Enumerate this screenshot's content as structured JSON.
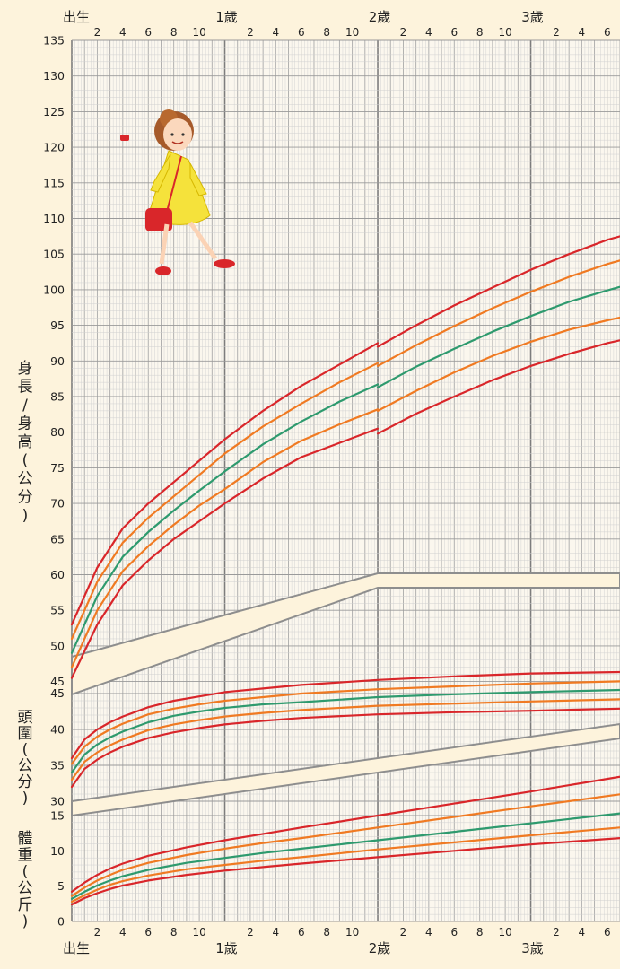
{
  "chart_data": {
    "type": "line",
    "title": "",
    "x_axis": {
      "unit": "months",
      "range": [
        0,
        43
      ],
      "major_labels": [
        {
          "month": 0,
          "text": "出生"
        },
        {
          "month": 12,
          "text": "1歲"
        },
        {
          "month": 24,
          "text": "2歲"
        },
        {
          "month": 36,
          "text": "3歲"
        }
      ],
      "minor_labels": [
        {
          "month": 2,
          "text": "2"
        },
        {
          "month": 4,
          "text": "4"
        },
        {
          "month": 6,
          "text": "6"
        },
        {
          "month": 8,
          "text": "8"
        },
        {
          "month": 10,
          "text": "10"
        },
        {
          "month": 14,
          "text": "2"
        },
        {
          "month": 16,
          "text": "4"
        },
        {
          "month": 18,
          "text": "6"
        },
        {
          "month": 20,
          "text": "8"
        },
        {
          "month": 22,
          "text": "10"
        },
        {
          "month": 26,
          "text": "2"
        },
        {
          "month": 28,
          "text": "4"
        },
        {
          "month": 30,
          "text": "6"
        },
        {
          "month": 32,
          "text": "8"
        },
        {
          "month": 34,
          "text": "10"
        },
        {
          "month": 38,
          "text": "2"
        },
        {
          "month": 40,
          "text": "4"
        },
        {
          "month": 42,
          "text": "6"
        }
      ]
    },
    "y_ticks": {
      "length": [
        "135",
        "130",
        "125",
        "120",
        "115",
        "110",
        "105",
        "100",
        "95",
        "90",
        "85",
        "80",
        "75",
        "70",
        "65",
        "60",
        "55",
        "50",
        "45"
      ],
      "head": [
        "45",
        "40",
        "35",
        "30"
      ],
      "weight": [
        "15",
        "10",
        "5",
        "0"
      ]
    },
    "axis_titles": {
      "length": [
        "身",
        "長",
        "/",
        "身",
        "高",
        "(",
        "公",
        "分",
        ")"
      ],
      "head": [
        "頭",
        "圍",
        "(",
        "公",
        "分",
        ")"
      ],
      "weight": [
        "體",
        "重",
        "(",
        "公",
        "斤",
        ")"
      ]
    },
    "percentile_colors": [
      "#d9262a",
      "#f07a22",
      "#2e9a6e",
      "#f07a22",
      "#d9262a"
    ],
    "series": [
      {
        "panel": "length",
        "x": [
          0,
          2,
          4,
          6,
          8,
          10,
          12,
          15,
          18,
          21,
          24
        ],
        "lines": [
          [
            53.0,
            61.0,
            66.5,
            70.0,
            73.0,
            76.0,
            79.0,
            83.0,
            86.5,
            89.5,
            92.5
          ],
          [
            51.0,
            59.0,
            64.5,
            68.0,
            71.0,
            74.0,
            77.0,
            80.8,
            84.0,
            87.0,
            89.7
          ],
          [
            49.0,
            57.0,
            62.5,
            66.0,
            69.0,
            71.8,
            74.5,
            78.3,
            81.5,
            84.3,
            86.7
          ],
          [
            47.0,
            55.0,
            60.5,
            64.0,
            67.0,
            69.7,
            72.0,
            75.8,
            78.8,
            81.1,
            83.2
          ],
          [
            45.5,
            53.0,
            58.5,
            62.0,
            65.0,
            67.5,
            70.0,
            73.5,
            76.5,
            78.5,
            80.5
          ]
        ]
      },
      {
        "panel": "height",
        "x": [
          24,
          27,
          30,
          33,
          36,
          39,
          42,
          43
        ],
        "lines": [
          [
            92.0,
            95.0,
            97.8,
            100.3,
            102.8,
            105.0,
            107.0,
            107.5
          ],
          [
            89.3,
            92.2,
            94.9,
            97.4,
            99.7,
            101.8,
            103.6,
            104.1
          ],
          [
            86.3,
            89.2,
            91.7,
            94.1,
            96.3,
            98.3,
            99.9,
            100.4
          ],
          [
            83.0,
            85.8,
            88.4,
            90.7,
            92.7,
            94.4,
            95.7,
            96.1
          ],
          [
            79.8,
            82.6,
            85.0,
            87.3,
            89.3,
            91.0,
            92.5,
            92.9
          ]
        ]
      },
      {
        "panel": "head",
        "x": [
          0,
          1,
          2,
          3,
          4,
          6,
          8,
          10,
          12,
          15,
          18,
          24,
          30,
          36,
          43
        ],
        "lines": [
          [
            36.0,
            38.6,
            40.0,
            41.0,
            41.8,
            43.1,
            44.0,
            44.6,
            45.2,
            45.7,
            46.2,
            46.9,
            47.4,
            47.8,
            48.0
          ],
          [
            35.2,
            37.6,
            39.0,
            40.0,
            40.8,
            42.1,
            42.9,
            43.5,
            44.0,
            44.5,
            45.0,
            45.6,
            46.0,
            46.4,
            46.7
          ],
          [
            34.0,
            36.5,
            37.9,
            38.9,
            39.7,
            41.0,
            41.9,
            42.5,
            43.0,
            43.5,
            43.8,
            44.5,
            44.9,
            45.2,
            45.5
          ],
          [
            33.0,
            35.5,
            36.8,
            37.8,
            38.6,
            39.9,
            40.7,
            41.3,
            41.8,
            42.3,
            42.7,
            43.3,
            43.6,
            43.9,
            44.2
          ],
          [
            32.0,
            34.5,
            35.8,
            36.8,
            37.6,
            38.8,
            39.6,
            40.2,
            40.7,
            41.2,
            41.6,
            42.1,
            42.4,
            42.6,
            42.9
          ]
        ]
      },
      {
        "panel": "weight",
        "x": [
          0,
          1,
          2,
          3,
          4,
          6,
          9,
          12,
          15,
          18,
          24,
          30,
          36,
          43
        ],
        "lines": [
          [
            4.2,
            5.5,
            6.6,
            7.5,
            8.2,
            9.3,
            10.5,
            11.5,
            12.4,
            13.3,
            15.0,
            16.7,
            18.4,
            20.5
          ],
          [
            3.6,
            4.8,
            5.8,
            6.6,
            7.3,
            8.3,
            9.4,
            10.3,
            11.1,
            11.8,
            13.3,
            14.8,
            16.3,
            18.0
          ],
          [
            3.2,
            4.2,
            5.1,
            5.8,
            6.4,
            7.3,
            8.3,
            9.0,
            9.7,
            10.3,
            11.5,
            12.7,
            13.9,
            15.3
          ],
          [
            2.8,
            3.7,
            4.5,
            5.2,
            5.7,
            6.5,
            7.4,
            8.0,
            8.6,
            9.1,
            10.2,
            11.2,
            12.2,
            13.3
          ],
          [
            2.4,
            3.3,
            4.0,
            4.6,
            5.1,
            5.8,
            6.6,
            7.2,
            7.7,
            8.2,
            9.1,
            10.0,
            10.9,
            11.8
          ]
        ]
      }
    ]
  }
}
